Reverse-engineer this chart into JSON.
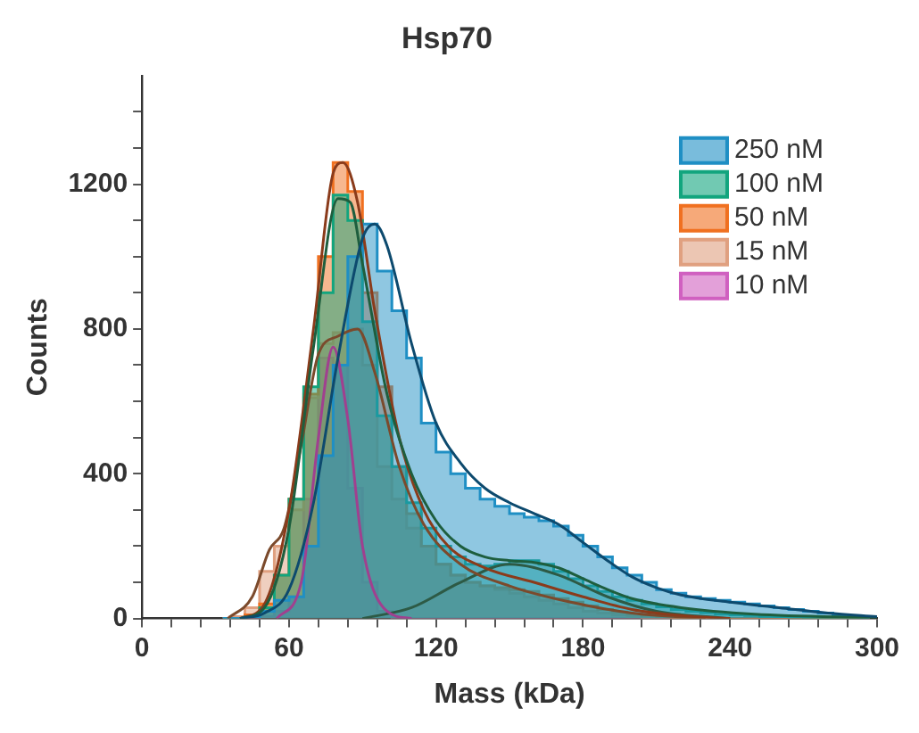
{
  "chart_data": {
    "type": "area",
    "title": "Hsp70",
    "xlabel": "Mass (kDa)",
    "ylabel": "Counts",
    "x": [
      33,
      39,
      45,
      51,
      57,
      63,
      69,
      75,
      81,
      87,
      93,
      99,
      105,
      111,
      117,
      123,
      129,
      135,
      141,
      147,
      153,
      159,
      165,
      171,
      177,
      183,
      189,
      195,
      201,
      207,
      213,
      219,
      225,
      231,
      237,
      243,
      249,
      255,
      261,
      267,
      273,
      279,
      285,
      291,
      297
    ],
    "series": [
      {
        "name": "250 nM",
        "color": "#1f8fc4",
        "values": [
          0,
          0,
          5,
          20,
          50,
          60,
          200,
          450,
          700,
          1000,
          1090,
          960,
          850,
          720,
          540,
          460,
          400,
          360,
          330,
          310,
          290,
          280,
          270,
          255,
          230,
          200,
          170,
          140,
          120,
          100,
          80,
          70,
          60,
          55,
          50,
          45,
          40,
          35,
          30,
          25,
          20,
          15,
          10,
          7,
          4
        ]
      },
      {
        "name": "100 nM",
        "color": "#12a57e",
        "values": [
          0,
          0,
          5,
          30,
          120,
          330,
          640,
          900,
          1170,
          1100,
          820,
          560,
          420,
          320,
          250,
          200,
          170,
          150,
          145,
          150,
          160,
          160,
          150,
          130,
          110,
          90,
          75,
          60,
          50,
          40,
          32,
          25,
          20,
          16,
          12,
          10,
          8,
          6,
          5,
          4,
          3,
          2,
          1,
          1,
          0
        ]
      },
      {
        "name": "50 nM",
        "color": "#f07020",
        "values": [
          0,
          0,
          10,
          40,
          120,
          330,
          620,
          1000,
          1260,
          1180,
          900,
          640,
          420,
          290,
          200,
          150,
          120,
          100,
          90,
          85,
          80,
          75,
          65,
          55,
          45,
          35,
          25,
          18,
          12,
          8,
          5,
          3,
          2,
          1,
          0,
          0,
          0,
          0,
          0,
          0,
          0,
          0,
          0,
          0,
          0
        ]
      },
      {
        "name": "15 nM",
        "color": "#e0a080",
        "values": [
          0,
          5,
          30,
          130,
          200,
          300,
          610,
          760,
          790,
          800,
          700,
          420,
          330,
          250,
          200,
          150,
          120,
          100,
          90,
          80,
          70,
          60,
          50,
          40,
          30,
          20,
          15,
          10,
          5,
          0,
          0,
          0,
          0,
          0,
          0,
          0,
          0,
          0,
          0,
          0,
          0,
          0,
          0,
          0,
          0
        ]
      },
      {
        "name": "10 nM",
        "color": "#d060c0",
        "values": [
          0,
          0,
          0,
          5,
          20,
          60,
          330,
          720,
          700,
          360,
          100,
          20,
          0,
          0,
          0,
          0,
          0,
          0,
          0,
          0,
          0,
          0,
          0,
          0,
          0,
          0,
          0,
          0,
          0,
          0,
          0,
          0,
          0,
          0,
          0,
          0,
          0,
          0,
          0,
          0,
          0,
          0,
          0,
          0,
          0
        ]
      },
      {
        "type": "line",
        "color": "#0d4a6e",
        "x": [
          40,
          50,
          60,
          70,
          80,
          90,
          95,
          100,
          110,
          120,
          130,
          140,
          150,
          160,
          170,
          180,
          190,
          200,
          210,
          220,
          240,
          260,
          280,
          300
        ],
        "values": [
          0,
          15,
          80,
          320,
          720,
          1050,
          1090,
          1030,
          760,
          540,
          430,
          360,
          320,
          290,
          260,
          210,
          160,
          115,
          85,
          65,
          45,
          30,
          15,
          5
        ]
      },
      {
        "type": "line",
        "color": "#1e5e3e",
        "x": [
          40,
          50,
          60,
          70,
          80,
          85,
          90,
          100,
          110,
          120,
          130,
          140,
          150,
          160,
          170,
          180,
          190,
          200,
          220,
          250,
          300
        ],
        "values": [
          0,
          30,
          250,
          750,
          1160,
          1150,
          980,
          620,
          400,
          270,
          200,
          170,
          160,
          155,
          140,
          110,
          80,
          55,
          30,
          12,
          2
        ]
      },
      {
        "type": "line",
        "color": "#8a3b1b",
        "x": [
          40,
          50,
          60,
          70,
          78,
          82,
          88,
          95,
          105,
          115,
          125,
          140,
          160,
          180,
          200,
          220,
          240
        ],
        "values": [
          0,
          40,
          300,
          800,
          1230,
          1260,
          1150,
          850,
          500,
          300,
          200,
          140,
          100,
          60,
          25,
          8,
          0
        ]
      },
      {
        "type": "line",
        "color": "#7b4a2c",
        "x": [
          35,
          45,
          52,
          58,
          65,
          72,
          80,
          88,
          95,
          105,
          115,
          130,
          150,
          175,
          200,
          230
        ],
        "values": [
          0,
          60,
          190,
          250,
          480,
          730,
          780,
          800,
          680,
          420,
          260,
          150,
          90,
          45,
          15,
          0
        ]
      },
      {
        "type": "line",
        "color": "#a0408f",
        "x": [
          55,
          65,
          72,
          78,
          84,
          90,
          100,
          110
        ],
        "values": [
          0,
          100,
          500,
          750,
          550,
          200,
          20,
          0
        ]
      },
      {
        "type": "line",
        "color": "#2d5a45",
        "x": [
          90,
          110,
          130,
          150,
          170,
          190,
          210,
          240
        ],
        "values": [
          0,
          30,
          100,
          150,
          120,
          60,
          20,
          0
        ]
      }
    ],
    "xlim": [
      0,
      300
    ],
    "xticks": [
      0,
      {
        "value": 12,
        "label": null
      },
      {
        "value": 24,
        "label": null
      },
      {
        "value": 36,
        "label": null
      },
      {
        "value": 48,
        "label": null
      },
      60,
      {
        "value": 72,
        "label": null
      },
      {
        "value": 84,
        "label": null
      },
      {
        "value": 96,
        "label": null
      },
      {
        "value": 108,
        "label": null
      },
      120,
      {
        "value": 132,
        "label": null
      },
      {
        "value": 144,
        "label": null
      },
      {
        "value": 156,
        "label": null
      },
      {
        "value": 168,
        "label": null
      },
      180,
      {
        "value": 192,
        "label": null
      },
      {
        "value": 204,
        "label": null
      },
      {
        "value": 216,
        "label": null
      },
      {
        "value": 228,
        "label": null
      },
      240,
      {
        "value": 252,
        "label": null
      },
      {
        "value": 264,
        "label": null
      },
      {
        "value": 276,
        "label": null
      },
      {
        "value": 288,
        "label": null
      },
      300
    ],
    "ylim": [
      0,
      1500
    ],
    "yticks": [
      0,
      {
        "value": 100,
        "label": null
      },
      {
        "value": 200,
        "label": null
      },
      {
        "value": 300,
        "label": null
      },
      400,
      {
        "value": 500,
        "label": null
      },
      {
        "value": 600,
        "label": null
      },
      {
        "value": 700,
        "label": null
      },
      800,
      {
        "value": 900,
        "label": null
      },
      {
        "value": 1000,
        "label": null
      },
      {
        "value": 1100,
        "label": null
      },
      1200,
      {
        "value": 1300,
        "label": null
      },
      {
        "value": 1400,
        "label": null
      }
    ],
    "grid": false,
    "legend": "top right"
  }
}
